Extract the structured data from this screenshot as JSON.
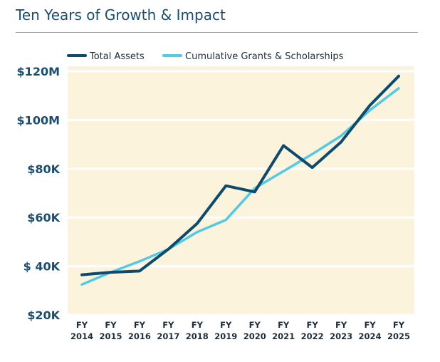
{
  "header": {
    "title": "Ten Years of Growth & Impact"
  },
  "chart_data": {
    "type": "line",
    "title": "Ten Years of Growth & Impact",
    "xlabel": "",
    "ylabel": "",
    "categories": [
      [
        "FY",
        "2014"
      ],
      [
        "FY",
        "2015"
      ],
      [
        "FY",
        "2016"
      ],
      [
        "FY",
        "2017"
      ],
      [
        "FY",
        "2018"
      ],
      [
        "FY",
        "2019"
      ],
      [
        "FY",
        "2020"
      ],
      [
        "FY",
        "2021"
      ],
      [
        "FY",
        "2022"
      ],
      [
        "FY",
        "2023"
      ],
      [
        "FY",
        "2024"
      ],
      [
        "FY",
        "2025"
      ]
    ],
    "y_tick_labels": [
      "$20K",
      "$ 40K",
      "$60K",
      "$80K",
      "$100M",
      "$120M"
    ],
    "ylim": [
      20,
      120
    ],
    "series": [
      {
        "name": "Total Assets",
        "color": "#0d4a6b",
        "values": [
          36.5,
          37.5,
          38,
          47,
          57.5,
          73,
          70.5,
          89.5,
          80.5,
          91,
          106,
          118
        ]
      },
      {
        "name": "Cumulative Grants & Scholarships",
        "color": "#55c8e3",
        "values": [
          32.5,
          37.5,
          42,
          47,
          54,
          59,
          72,
          79,
          86,
          93.5,
          104,
          113
        ]
      }
    ],
    "legend_position": "top"
  }
}
